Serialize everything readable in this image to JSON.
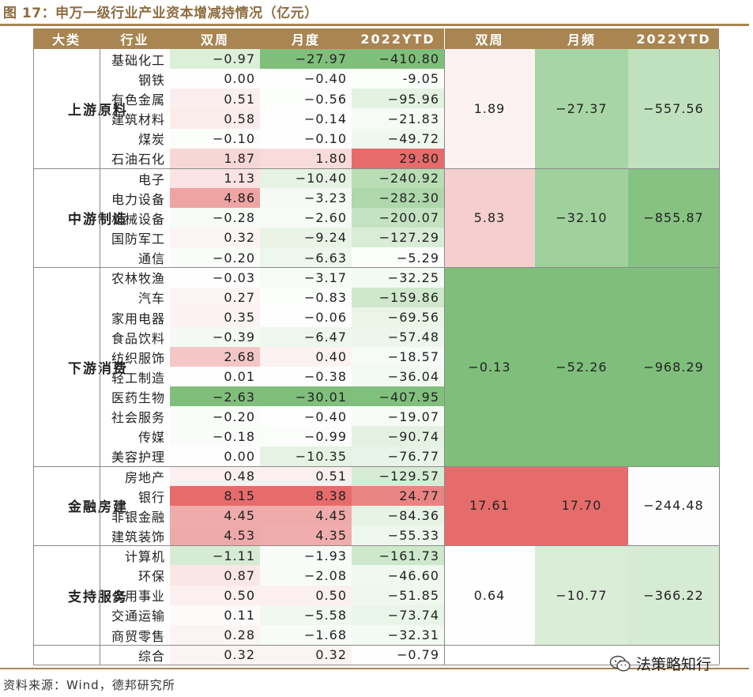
{
  "title": "图 17：申万一级行业产业资本增减持情况（亿元）",
  "source": "资料来源：Wind，德邦研究所",
  "watermark": "法策略知行",
  "headers": {
    "category": "大类",
    "industry": "行业",
    "biweekly": "双周",
    "monthly": "月度",
    "ytd": "2022YTD",
    "agg_biweekly": "双周",
    "agg_monthly": "月频",
    "agg_ytd": "2022YTD"
  },
  "colors": {
    "header_bg": "#a98552",
    "title": "#8e6c40",
    "strong_green": "#7fbf7b",
    "strong_red": "#e66c6b"
  },
  "rows": [
    {
      "industry": "基础化工",
      "biweekly": "−0.97",
      "monthly": "−27.97",
      "ytd": "−410.80",
      "c1": "#dcefd9",
      "c2": "#7fbf7b",
      "c3": "#7fbf7b"
    },
    {
      "industry": "钢铁",
      "biweekly": "0.00",
      "monthly": "−0.40",
      "ytd": "-9.05",
      "c1": "#fefefe",
      "c2": "#fdfefd",
      "c3": "#fafdfa"
    },
    {
      "industry": "有色金属",
      "biweekly": "0.51",
      "monthly": "−0.56",
      "ytd": "−95.96",
      "c1": "#fbeeee",
      "c2": "#fcfefc",
      "c3": "#e3f2e1"
    },
    {
      "industry": "建筑材料",
      "biweekly": "0.58",
      "monthly": "−0.14",
      "ytd": "−21.83",
      "c1": "#fbecec",
      "c2": "#fefefe",
      "c3": "#f6fbf6"
    },
    {
      "industry": "煤炭",
      "biweekly": "−0.10",
      "monthly": "−0.10",
      "ytd": "−49.72",
      "c1": "#fbfdfb",
      "c2": "#fefefe",
      "c3": "#eff7ee"
    },
    {
      "industry": "石油石化",
      "biweekly": "1.87",
      "monthly": "1.80",
      "ytd": "29.80",
      "c1": "#f7d7d6",
      "c2": "#f7dcdb",
      "c3": "#e66c6b"
    },
    {
      "industry": "电子",
      "biweekly": "1.13",
      "monthly": "−10.40",
      "ytd": "−240.92",
      "c1": "#fae3e3",
      "c2": "#e6f3e4",
      "c3": "#b9deb6"
    },
    {
      "industry": "电力设备",
      "biweekly": "4.86",
      "monthly": "−3.23",
      "ytd": "−282.30",
      "c1": "#eea4a3",
      "c2": "#f5faf4",
      "c3": "#aed8ab"
    },
    {
      "industry": "机械设备",
      "biweekly": "−0.28",
      "monthly": "−2.60",
      "ytd": "−200.07",
      "c1": "#f7fbf7",
      "c2": "#f6fbf6",
      "c3": "#c4e3c1"
    },
    {
      "industry": "国防军工",
      "biweekly": "0.32",
      "monthly": "−9.24",
      "ytd": "−127.29",
      "c1": "#fcf3f3",
      "c2": "#e9f4e7",
      "c3": "#d8ecd6"
    },
    {
      "industry": "通信",
      "biweekly": "−0.20",
      "monthly": "−6.63",
      "ytd": "−5.29",
      "c1": "#f9fcf9",
      "c2": "#eef7ed",
      "c3": "#fcfefc"
    },
    {
      "industry": "农林牧渔",
      "biweekly": "−0.03",
      "monthly": "−3.17",
      "ytd": "−32.25",
      "c1": "#fefefe",
      "c2": "#f6fbf5",
      "c3": "#f3f9f3"
    },
    {
      "industry": "汽车",
      "biweekly": "0.27",
      "monthly": "−0.83",
      "ytd": "−159.86",
      "c1": "#fcf4f4",
      "c2": "#fcfefc",
      "c3": "#cfe8cc"
    },
    {
      "industry": "家用电器",
      "biweekly": "0.35",
      "monthly": "−0.06",
      "ytd": "−69.56",
      "c1": "#fcf2f2",
      "c2": "#fefefe",
      "c3": "#eaf5e8"
    },
    {
      "industry": "食品饮料",
      "biweekly": "−0.39",
      "monthly": "−6.47",
      "ytd": "−57.48",
      "c1": "#f4faf3",
      "c2": "#eef7ed",
      "c3": "#edf6ec"
    },
    {
      "industry": "纺织服饰",
      "biweekly": "2.68",
      "monthly": "0.40",
      "ytd": "−18.57",
      "c1": "#f4c7c6",
      "c2": "#fcf2f2",
      "c3": "#f7fbf7"
    },
    {
      "industry": "轻工制造",
      "biweekly": "0.01",
      "monthly": "−0.38",
      "ytd": "−36.04",
      "c1": "#fefefe",
      "c2": "#fdfefd",
      "c3": "#f2f9f2"
    },
    {
      "industry": "医药生物",
      "biweekly": "−2.63",
      "monthly": "−30.01",
      "ytd": "−407.95",
      "c1": "#7fbf7b",
      "c2": "#7fbf7b",
      "c3": "#80c07c"
    },
    {
      "industry": "社会服务",
      "biweekly": "−0.20",
      "monthly": "−0.40",
      "ytd": "−19.07",
      "c1": "#f9fcf9",
      "c2": "#fdfefd",
      "c3": "#f7fbf6"
    },
    {
      "industry": "传媒",
      "biweekly": "−0.18",
      "monthly": "−0.99",
      "ytd": "−90.74",
      "c1": "#f9fcf9",
      "c2": "#fbfdfb",
      "c3": "#e5f2e3"
    },
    {
      "industry": "美容护理",
      "biweekly": "0.00",
      "monthly": "−10.35",
      "ytd": "−76.77",
      "c1": "#fefefe",
      "c2": "#e6f3e4",
      "c3": "#e8f4e7"
    },
    {
      "industry": "房地产",
      "biweekly": "0.48",
      "monthly": "0.51",
      "ytd": "−129.57",
      "c1": "#fbefef",
      "c2": "#fbefef",
      "c3": "#d7ecd5"
    },
    {
      "industry": "银行",
      "biweekly": "8.15",
      "monthly": "8.38",
      "ytd": "24.77",
      "c1": "#e66c6b",
      "c2": "#e66c6b",
      "c3": "#ea8483"
    },
    {
      "industry": "非银金融",
      "biweekly": "4.45",
      "monthly": "4.45",
      "ytd": "−84.36",
      "c1": "#efabaa",
      "c2": "#efabaa",
      "c3": "#e6f3e5"
    },
    {
      "industry": "建筑装饰",
      "biweekly": "4.53",
      "monthly": "4.35",
      "ytd": "−55.33",
      "c1": "#eeaaa9",
      "c2": "#efadac",
      "c3": "#eef7ed"
    },
    {
      "industry": "计算机",
      "biweekly": "−1.11",
      "monthly": "−1.93",
      "ytd": "−161.73",
      "c1": "#d6ebd3",
      "c2": "#f8fcf8",
      "c3": "#cee8cc"
    },
    {
      "industry": "环保",
      "biweekly": "0.87",
      "monthly": "−2.08",
      "ytd": "−46.60",
      "c1": "#fae6e6",
      "c2": "#f8fcf7",
      "c3": "#f0f8ef"
    },
    {
      "industry": "公用事业",
      "biweekly": "0.50",
      "monthly": "0.50",
      "ytd": "−51.85",
      "c1": "#fbefef",
      "c2": "#fbefef",
      "c3": "#eff7ee"
    },
    {
      "industry": "交通运输",
      "biweekly": "0.11",
      "monthly": "−5.58",
      "ytd": "−73.74",
      "c1": "#fdfafa",
      "c2": "#f0f8ef",
      "c3": "#e9f5e8"
    },
    {
      "industry": "商贸零售",
      "biweekly": "0.28",
      "monthly": "−1.68",
      "ytd": "−32.31",
      "c1": "#fcf4f4",
      "c2": "#f8fcf8",
      "c3": "#f3f9f3"
    },
    {
      "industry": "综合",
      "biweekly": "0.32",
      "monthly": "0.32",
      "ytd": "−0.79",
      "c1": "#fcf3f3",
      "c2": "#fcf3f3",
      "c3": "#fefefe"
    }
  ],
  "groups": [
    {
      "name": "上游原料",
      "start": 0,
      "count": 6,
      "biweekly": "1.89",
      "monthly": "−27.37",
      "ytd": "−557.56",
      "c1": "#fdf2f2",
      "c2": "#a8d5a5",
      "c3": "#c0e1bd"
    },
    {
      "name": "中游制造",
      "start": 6,
      "count": 5,
      "biweekly": "5.83",
      "monthly": "−32.10",
      "ytd": "−855.87",
      "c1": "#f5cfce",
      "c2": "#a0d19d",
      "c3": "#86c382"
    },
    {
      "name": "下游消费",
      "start": 11,
      "count": 10,
      "biweekly": "−0.13",
      "monthly": "−52.26",
      "ytd": "−968.29",
      "c1": "#7fbf7b",
      "c2": "#7fbf7b",
      "c3": "#7fbf7b"
    },
    {
      "name": "金融房建",
      "start": 21,
      "count": 4,
      "biweekly": "17.61",
      "monthly": "17.70",
      "ytd": "−244.48",
      "c1": "#e66c6b",
      "c2": "#e66c6b",
      "c3": "#fdfdfd"
    },
    {
      "name": "支持服务",
      "start": 25,
      "count": 5,
      "biweekly": "0.64",
      "monthly": "−10.77",
      "ytd": "−366.22",
      "c1": "#fefefe",
      "c2": "#d9edd7",
      "c3": "#d6ebd3"
    },
    {
      "name": "",
      "start": 30,
      "count": 1,
      "biweekly": "",
      "monthly": "",
      "ytd": "",
      "c1": "#ffffff",
      "c2": "#ffffff",
      "c3": "#ffffff"
    }
  ]
}
